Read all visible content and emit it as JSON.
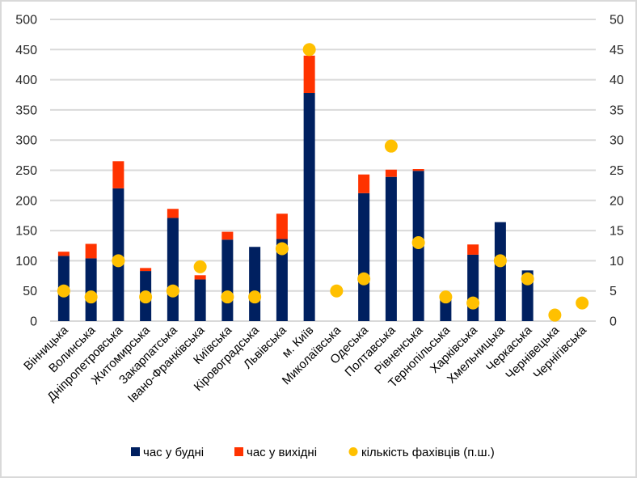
{
  "chart_data": {
    "type": "bar",
    "stacked": true,
    "title": "",
    "xlabel": "",
    "ylabel": "",
    "y2label": "",
    "ylim": [
      0,
      500
    ],
    "y2lim": [
      0,
      50
    ],
    "yticks": [
      0,
      50,
      100,
      150,
      200,
      250,
      300,
      350,
      400,
      450,
      500
    ],
    "y2ticks": [
      0,
      5,
      10,
      15,
      20,
      25,
      30,
      35,
      40,
      45,
      50
    ],
    "grid": true,
    "legend_position": "bottom",
    "categories": [
      "Вінницька",
      "Волинська",
      "Дніпропетровська",
      "Житомирська",
      "Закарпатська",
      "Івано-Франківська",
      "Київська",
      "Кіровоградська",
      "Львівська",
      "м. Київ",
      "Миколаївська",
      "Одеська",
      "Полтавська",
      "Рівненська",
      "Тернопільська",
      "Харківська",
      "Хмельницька",
      "Черкаська",
      "Чернівецька",
      "Чернігівська"
    ],
    "series": [
      {
        "name": "час у будні",
        "kind": "bar",
        "axis": "primary",
        "color": "#002060",
        "values": [
          108,
          104,
          220,
          83,
          171,
          69,
          135,
          123,
          136,
          378,
          0,
          212,
          239,
          249,
          38,
          110,
          164,
          84,
          0,
          0
        ]
      },
      {
        "name": "час у вихідні",
        "kind": "bar",
        "axis": "primary",
        "color": "#ff3300",
        "values": [
          7,
          24,
          45,
          5,
          15,
          7,
          13,
          0,
          42,
          62,
          0,
          31,
          12,
          3,
          0,
          17,
          0,
          0,
          0,
          0
        ]
      },
      {
        "name": "кількість фахівців (п.ш.)",
        "kind": "scatter",
        "axis": "secondary",
        "color": "#ffc000",
        "values": [
          5,
          4,
          10,
          4,
          5,
          9,
          4,
          4,
          12,
          45,
          5,
          7,
          29,
          13,
          4,
          3,
          10,
          7,
          1,
          3
        ]
      }
    ]
  }
}
